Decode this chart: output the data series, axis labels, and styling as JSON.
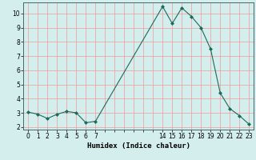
{
  "x": [
    0,
    1,
    2,
    3,
    4,
    5,
    6,
    7,
    14,
    15,
    16,
    17,
    18,
    19,
    20,
    21,
    22,
    23
  ],
  "y": [
    3.05,
    2.9,
    2.6,
    2.9,
    3.1,
    3.0,
    2.3,
    2.4,
    10.5,
    9.3,
    10.4,
    9.8,
    9.0,
    7.5,
    4.4,
    3.3,
    2.8,
    2.2
  ],
  "xlabel": "Humidex (Indice chaleur)",
  "ylabel": "",
  "xlim": [
    -0.5,
    23.5
  ],
  "ylim": [
    1.8,
    10.8
  ],
  "yticks": [
    2,
    3,
    4,
    5,
    6,
    7,
    8,
    9,
    10
  ],
  "xtick_positions": [
    0,
    1,
    2,
    3,
    4,
    5,
    6,
    7,
    8,
    9,
    10,
    11,
    12,
    13,
    14,
    15,
    16,
    17,
    18,
    19,
    20,
    21,
    22,
    23
  ],
  "xtick_labels": [
    "0",
    "1",
    "2",
    "3",
    "4",
    "5",
    "6",
    "7",
    "",
    "",
    "",
    "",
    "",
    "",
    "14",
    "15",
    "16",
    "17",
    "18",
    "19",
    "20",
    "21",
    "22",
    "23"
  ],
  "line_color": "#1a6b5a",
  "marker_color": "#1a6b5a",
  "bg_color": "#d4eeee",
  "grid_color": "#ee9999",
  "axis_bg": "#d4eeee"
}
